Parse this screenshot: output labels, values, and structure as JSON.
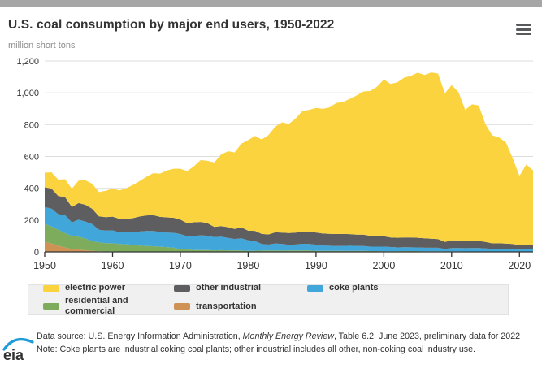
{
  "header": {
    "title": "U.S. coal consumption by major end users, 1950-2022",
    "subtitle": "million short tons",
    "menu_icon": "hamburger-menu"
  },
  "chart_data": {
    "type": "area",
    "stacked": true,
    "title": "U.S. coal consumption by major end users, 1950-2022",
    "ylabel": "million short tons",
    "xlabel": "",
    "ylim": [
      0,
      1200
    ],
    "grid": "horizontal",
    "legend_position": "bottom",
    "x_ticks": [
      1950,
      1960,
      1970,
      1980,
      1990,
      2000,
      2010,
      2020
    ],
    "y_ticks": [
      0,
      200,
      400,
      600,
      800,
      1000,
      1200
    ],
    "y_tick_labels": [
      "0",
      "200",
      "400",
      "600",
      "800",
      "1,000",
      "1,200"
    ],
    "x": [
      1950,
      1951,
      1952,
      1953,
      1954,
      1955,
      1956,
      1957,
      1958,
      1959,
      1960,
      1961,
      1962,
      1963,
      1964,
      1965,
      1966,
      1967,
      1968,
      1969,
      1970,
      1971,
      1972,
      1973,
      1974,
      1975,
      1976,
      1977,
      1978,
      1979,
      1980,
      1981,
      1982,
      1983,
      1984,
      1985,
      1986,
      1987,
      1988,
      1989,
      1990,
      1991,
      1992,
      1993,
      1994,
      1995,
      1996,
      1997,
      1998,
      1999,
      2000,
      2001,
      2002,
      2003,
      2004,
      2005,
      2006,
      2007,
      2008,
      2009,
      2010,
      2011,
      2012,
      2013,
      2014,
      2015,
      2016,
      2017,
      2018,
      2019,
      2020,
      2021,
      2022
    ],
    "series": [
      {
        "name": "transportation",
        "color": "#ce9255",
        "values": [
          63,
          53.5,
          38.8,
          28.1,
          17.4,
          15.5,
          10.1,
          6.8,
          3.7,
          2.6,
          3,
          0.7,
          0.7,
          0.4,
          0.4,
          0.3,
          0.3,
          0.3,
          0.3,
          0.3,
          0.3,
          0.3,
          0.2,
          0.2,
          0.2,
          0.2,
          0.2,
          0.2,
          0.2,
          0.2,
          0,
          0,
          0,
          0,
          0,
          0,
          0,
          0,
          0,
          0,
          0,
          0,
          0,
          0,
          0,
          0,
          0,
          0,
          0,
          0,
          0,
          0,
          0,
          0,
          0,
          0,
          0,
          0,
          0,
          0,
          0,
          0,
          0,
          0,
          0,
          0,
          0,
          0,
          0,
          0,
          0,
          0,
          0
        ]
      },
      {
        "name": "residential and commercial",
        "color": "#7dac5c",
        "values": [
          114.6,
          105.8,
          100.5,
          89.8,
          82.8,
          79.6,
          74.1,
          59.9,
          56.5,
          52,
          51.2,
          48.7,
          47.5,
          44.5,
          39.3,
          36.6,
          35.3,
          32.5,
          29.8,
          26.8,
          16.1,
          15.3,
          11.7,
          11.1,
          11,
          9.4,
          10.5,
          9.7,
          9.5,
          8.4,
          6.5,
          7.4,
          8.2,
          8.8,
          9,
          8.4,
          9,
          9.3,
          9.3,
          9.3,
          6.7,
          6.1,
          6.2,
          6.2,
          6,
          5.8,
          6,
          6.5,
          4.9,
          4.9,
          4.1,
          4.3,
          4.4,
          4.9,
          5.1,
          4.9,
          3.1,
          3.5,
          3.7,
          3.2,
          3.2,
          3.2,
          2.5,
          2.7,
          2.8,
          2.3,
          1.8,
          1.9,
          1.9,
          1.6,
          1.2,
          1.1,
          1.3
        ]
      },
      {
        "name": "coke plants",
        "color": "#41a6d9",
        "values": [
          104,
          113.4,
          97.6,
          112.9,
          85.4,
          107.4,
          105.9,
          108.4,
          78.6,
          79.2,
          81,
          73.9,
          74.3,
          77.6,
          88.7,
          94.8,
          95.9,
          92.3,
          90.8,
          92.9,
          96,
          82.8,
          87.3,
          93.6,
          89.7,
          83.6,
          84.7,
          77.7,
          71.4,
          77.4,
          66.6,
          61,
          41.1,
          37,
          44,
          41,
          35.9,
          37,
          41.9,
          40.5,
          38.9,
          33.9,
          32.4,
          31.3,
          31.7,
          33,
          31.7,
          30.2,
          28.2,
          28.1,
          28.9,
          26.1,
          23.7,
          24.2,
          23.7,
          23.4,
          22.9,
          22.7,
          22.1,
          15.3,
          21.1,
          21.4,
          20.8,
          21.5,
          21.3,
          19.7,
          16.5,
          17.9,
          17.5,
          16.9,
          12.8,
          14.8,
          17
        ]
      },
      {
        "name": "other industrial",
        "color": "#5e5e60",
        "values": [
          124.6,
          125.8,
          114.5,
          113.9,
          96.3,
          104.5,
          106.3,
          95.9,
          84.1,
          84.8,
          86.6,
          84.4,
          85.8,
          89.3,
          94,
          97.7,
          99.2,
          95.2,
          95.9,
          94.5,
          90.2,
          82.6,
          87,
          83.4,
          80.1,
          63.6,
          67.2,
          68,
          63.1,
          67.7,
          60.3,
          64.1,
          63.6,
          63.9,
          70.1,
          71.4,
          73.4,
          74.6,
          76.3,
          76.2,
          76.3,
          75.4,
          74.9,
          74.9,
          75.2,
          73.1,
          70.9,
          71.5,
          67.4,
          64.9,
          65.2,
          60.6,
          60.7,
          61.3,
          62.2,
          60.8,
          59.5,
          56.6,
          54.4,
          44.5,
          48.8,
          47.2,
          45.8,
          45.3,
          44.9,
          41,
          35.5,
          34.4,
          33,
          31.7,
          26.9,
          28.4,
          26.6
        ]
      },
      {
        "name": "electric power",
        "color": "#fbd33f",
        "values": [
          91.9,
          101.9,
          103.3,
          112.3,
          115.2,
          140.6,
          153.8,
          157.4,
          152.9,
          165.8,
          176.6,
          179.6,
          190.8,
          209,
          223,
          242.7,
          264.2,
          271.8,
          294.7,
          308.5,
          320.2,
          327.3,
          351.8,
          389.2,
          391.2,
          405.6,
          448.4,
          477.1,
          481.2,
          527.1,
          569.3,
          596.8,
          593.7,
          625.2,
          664.4,
          693.8,
          685.7,
          717.9,
          758.4,
          766.9,
          783,
          783.8,
          795.1,
          823.6,
          830.1,
          850.2,
          874.7,
          900.4,
          910.9,
          940.9,
          985.8,
          964.4,
          977.5,
          1005.1,
          1016.3,
          1037.5,
          1026.6,
          1045.1,
          1040.6,
          933.6,
          975.1,
          932.5,
          823.6,
          858,
          851.6,
          738.4,
          678.6,
          664.2,
          636.5,
          538.6,
          436.5,
          505,
          467.7
        ]
      }
    ]
  },
  "footer": {
    "logo_text": "eia",
    "source_prefix": "Data source: U.S. Energy Information Administration, ",
    "source_italic": "Monthly Energy Review",
    "source_suffix": ", Table 6.2, June 2023, preliminary data for 2022",
    "note": "Note: Coke plants are industrial coking coal plants; other industrial includes all other, non-coking coal industry use."
  },
  "colors": {
    "top_bar": "#a6a6a6",
    "grid_line": "#dcdcdc",
    "axis_line": "#333333",
    "legend_bg": "#f0f0f0",
    "eia_blue": "#1f9bd7"
  }
}
